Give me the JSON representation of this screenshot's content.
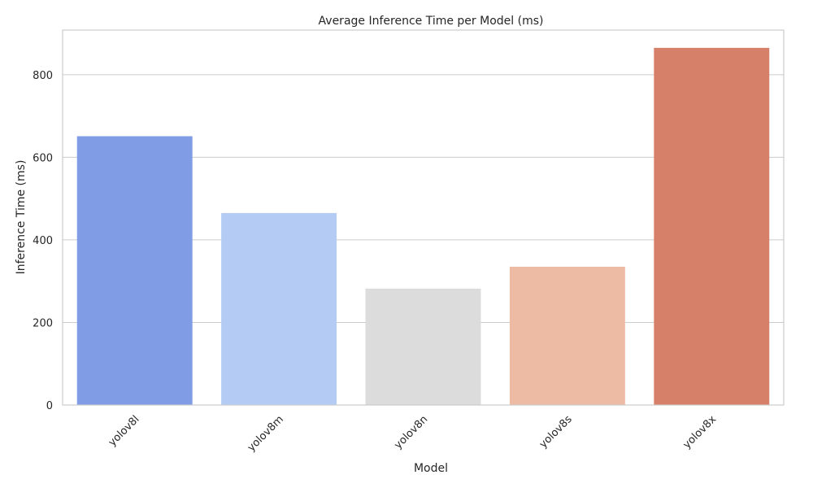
{
  "chart_data": {
    "type": "bar",
    "title": "Average Inference Time per Model (ms)",
    "xlabel": "Model",
    "ylabel": "Inference Time (ms)",
    "categories": [
      "yolov8l",
      "yolov8m",
      "yolov8n",
      "yolov8s",
      "yolov8x"
    ],
    "values": [
      651,
      465,
      282,
      335,
      865
    ],
    "colors": [
      "#7f9ce5",
      "#b4cbf4",
      "#dcdcdc",
      "#edbba4",
      "#d6806a"
    ],
    "ylim": [
      0,
      908
    ],
    "yticks": [
      0,
      200,
      400,
      600,
      800
    ],
    "grid": true,
    "x_tick_rotation": 45
  }
}
